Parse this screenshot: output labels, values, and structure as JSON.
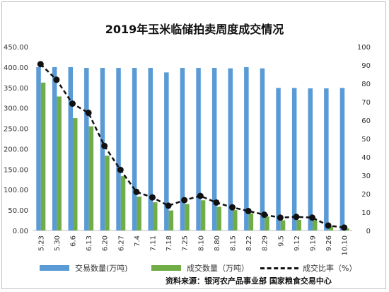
{
  "chart_data": {
    "type": "bar",
    "title": "2019年玉米临储拍卖周度成交情况",
    "categories": [
      "5.23",
      "5.30",
      "6.6",
      "6.13",
      "6.20",
      "6.27",
      "7.4",
      "7.11",
      "7.18",
      "7.25",
      "8.10",
      "8.80",
      "8.15",
      "8.22",
      "8.29",
      "9.5",
      "9.12",
      "9.19",
      "9.26",
      "10.10"
    ],
    "y_left_ticks": [
      "0.00",
      "50.00",
      "100.00",
      "150.00",
      "200.00",
      "250.00",
      "300.00",
      "350.00",
      "400.00",
      "450.00"
    ],
    "y_left_lim": [
      0,
      450
    ],
    "y_right_ticks": [
      "0",
      "10",
      "20",
      "30",
      "40",
      "50",
      "60",
      "70",
      "80",
      "90",
      "100"
    ],
    "y_right_lim": [
      0,
      100
    ],
    "series": [
      {
        "name": "交易数量(万吨)",
        "kind": "bar",
        "axis": "left",
        "color": "#5b9bd5",
        "values": [
          400,
          400,
          400,
          398,
          398,
          398,
          398,
          398,
          387,
          398,
          398,
          398,
          397,
          400,
          397,
          349,
          349,
          348,
          348,
          349
        ]
      },
      {
        "name": "成交数量（万吨）",
        "kind": "bar",
        "axis": "left",
        "color": "#70ad47",
        "values": [
          362,
          328,
          275,
          255,
          183,
          133,
          83,
          69,
          49,
          65,
          74,
          58,
          50,
          42,
          34,
          25,
          26,
          25,
          10,
          5
        ]
      },
      {
        "name": "成交比率（%）",
        "kind": "line",
        "axis": "right",
        "color": "#111111",
        "values": [
          90.5,
          82,
          69,
          64,
          46,
          33,
          21,
          18,
          13.5,
          16.5,
          18.8,
          15.2,
          12.6,
          10.6,
          8.6,
          7,
          7.4,
          7,
          2.7,
          1.6
        ]
      }
    ],
    "grid": false
  },
  "source": "资料来源：银河农产品事业部   国家粮食交易中心"
}
